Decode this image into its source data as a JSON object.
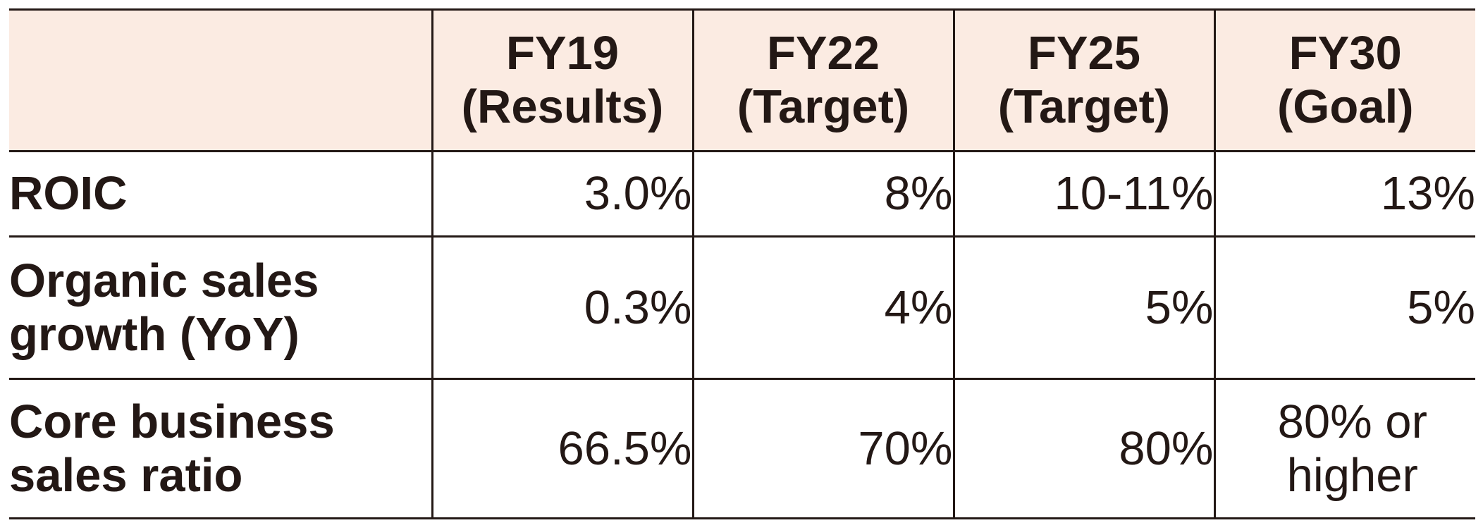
{
  "table": {
    "header": [
      {
        "line1": "",
        "line2": ""
      },
      {
        "line1": "FY19",
        "line2": "(Results)"
      },
      {
        "line1": "FY22",
        "line2": "(Target)"
      },
      {
        "line1": "FY25",
        "line2": "(Target)"
      },
      {
        "line1": "FY30",
        "line2": "(Goal)"
      }
    ],
    "rows": [
      {
        "label": [
          "ROIC"
        ],
        "values": [
          "3.0%",
          "8%",
          "10-11%",
          "13%"
        ]
      },
      {
        "label": [
          "Organic sales",
          "growth (YoY)"
        ],
        "values": [
          "0.3%",
          "4%",
          "5%",
          "5%"
        ]
      },
      {
        "label": [
          "Core business",
          "sales ratio"
        ],
        "values": [
          "66.5%",
          "70%",
          "80%"
        ],
        "last_value": [
          "80% or",
          "higher"
        ]
      }
    ]
  },
  "colors": {
    "header_bg": "#fbebe2",
    "text": "#231815",
    "rules": "#231815"
  }
}
